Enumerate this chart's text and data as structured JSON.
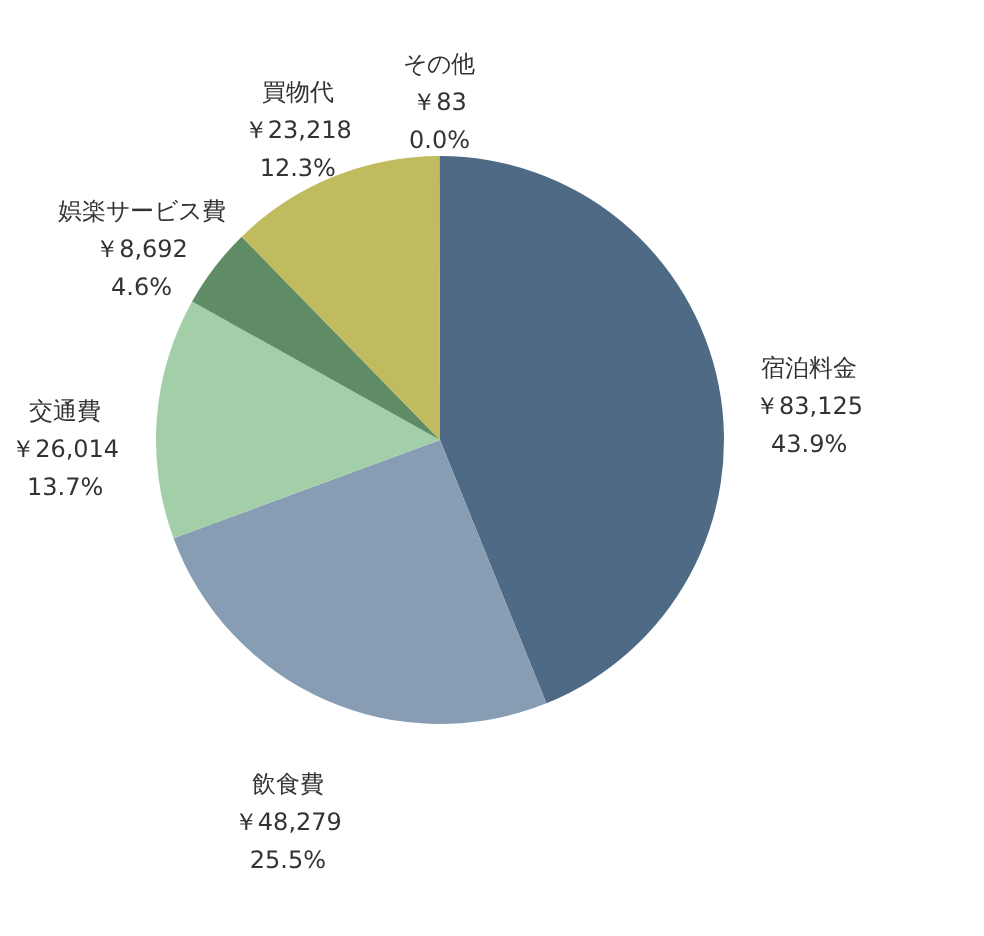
{
  "chart_data": {
    "type": "pie",
    "categories": [
      "宿泊料金",
      "飲食費",
      "交通費",
      "娯楽サービス費",
      "買物代",
      "その他"
    ],
    "values": [
      83125,
      48279,
      26014,
      8692,
      23218,
      83
    ],
    "colors": [
      "#4e6a85",
      "#869db3",
      "#a3cfa8",
      "#5f8c64",
      "#c1bb5f",
      "#e07b50"
    ],
    "value_labels": [
      "￥83,125\n43.9%",
      "￥48,279\n25.5%",
      "￥26,014\n13.7%",
      "￥8,692\n4.6%",
      "￥23,218\n12.3%",
      "￥83\n0.0%"
    ],
    "legend": false
  }
}
